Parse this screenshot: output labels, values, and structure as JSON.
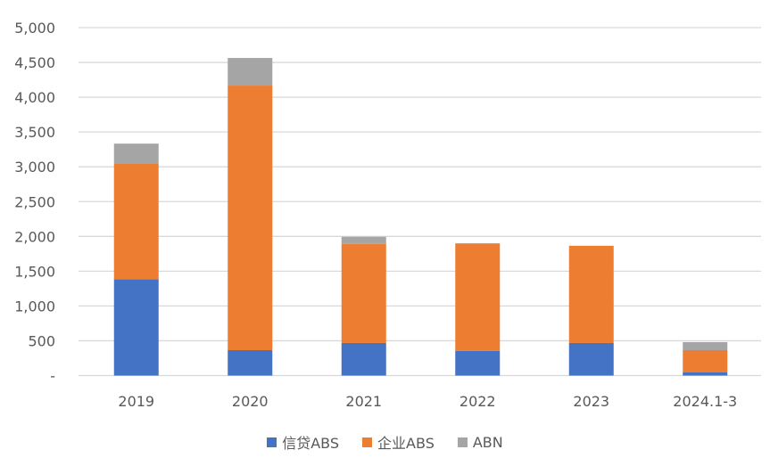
{
  "chart_data": {
    "type": "bar",
    "stacked": true,
    "title": "",
    "xlabel": "",
    "ylabel": "",
    "categories": [
      "2019",
      "2020",
      "2021",
      "2022",
      "2023",
      "2024.1-3"
    ],
    "series": [
      {
        "name": "信贷ABS",
        "color": "#4472C4",
        "values": [
          1385,
          365,
          468,
          353,
          468,
          45
        ]
      },
      {
        "name": "企业ABS",
        "color": "#ED7D31",
        "values": [
          1666,
          3802,
          1423,
          1544,
          1397,
          320
        ]
      },
      {
        "name": "ABN",
        "color": "#A5A5A5",
        "values": [
          282,
          397,
          103,
          5,
          0,
          116
        ]
      }
    ],
    "ylim": [
      0,
      5000
    ],
    "yticks": [
      0,
      500,
      1000,
      1500,
      2000,
      2500,
      3000,
      3500,
      4000,
      4500,
      5000
    ],
    "ytick_labels": [
      "-",
      "500",
      "1,000",
      "1,500",
      "2,000",
      "2,500",
      "3,000",
      "3,500",
      "4,000",
      "4,500",
      "5,000"
    ],
    "grid": true,
    "legend_position": "bottom"
  }
}
